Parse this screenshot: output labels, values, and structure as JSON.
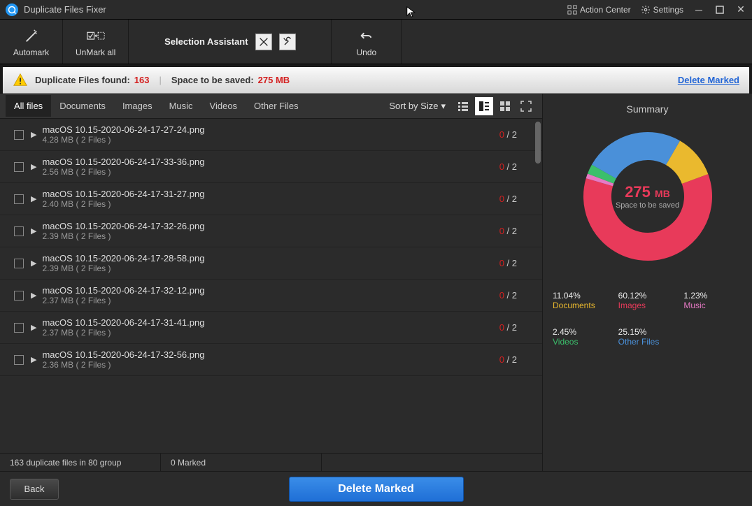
{
  "titlebar": {
    "title": "Duplicate Files Fixer",
    "action_center": "Action Center",
    "settings": "Settings"
  },
  "toolbar": {
    "automark": "Automark",
    "unmark_all": "UnMark all",
    "selection_assistant": "Selection Assistant",
    "undo": "Undo"
  },
  "infobar": {
    "found_label": "Duplicate Files found:",
    "found_count": "163",
    "space_label": "Space to be saved:",
    "space_value": "275 MB",
    "delete_marked": "Delete Marked"
  },
  "tabs": {
    "items": [
      "All files",
      "Documents",
      "Images",
      "Music",
      "Videos",
      "Other Files"
    ],
    "active_index": 0,
    "sort_label": "Sort by Size"
  },
  "files": [
    {
      "name": "macOS 10.15-2020-06-24-17-27-24.png",
      "size": "4.28 MB",
      "group": "( 2 Files )",
      "sel": "0",
      "total": "2"
    },
    {
      "name": "macOS 10.15-2020-06-24-17-33-36.png",
      "size": "2.56 MB",
      "group": "( 2 Files )",
      "sel": "0",
      "total": "2"
    },
    {
      "name": "macOS 10.15-2020-06-24-17-31-27.png",
      "size": "2.40 MB",
      "group": "( 2 Files )",
      "sel": "0",
      "total": "2"
    },
    {
      "name": "macOS 10.15-2020-06-24-17-32-26.png",
      "size": "2.39 MB",
      "group": "( 2 Files )",
      "sel": "0",
      "total": "2"
    },
    {
      "name": "macOS 10.15-2020-06-24-17-28-58.png",
      "size": "2.39 MB",
      "group": "( 2 Files )",
      "sel": "0",
      "total": "2"
    },
    {
      "name": "macOS 10.15-2020-06-24-17-32-12.png",
      "size": "2.37 MB",
      "group": "( 2 Files )",
      "sel": "0",
      "total": "2"
    },
    {
      "name": "macOS 10.15-2020-06-24-17-31-41.png",
      "size": "2.37 MB",
      "group": "( 2 Files )",
      "sel": "0",
      "total": "2"
    },
    {
      "name": "macOS 10.15-2020-06-24-17-32-56.png",
      "size": "2.36 MB",
      "group": "( 2 Files )",
      "sel": "0",
      "total": "2"
    }
  ],
  "statusbar": {
    "summary": "163 duplicate files in 80 group",
    "marked": "0 Marked"
  },
  "bottombar": {
    "back": "Back",
    "delete": "Delete Marked"
  },
  "summary": {
    "title": "Summary",
    "center_value": "275",
    "center_unit": "MB",
    "center_label": "Space to be saved",
    "donut": {
      "segments": [
        {
          "label": "Documents",
          "pct": 11.04,
          "color": "#eab92e"
        },
        {
          "label": "Images",
          "pct": 60.12,
          "color": "#e83a5a"
        },
        {
          "label": "Music",
          "pct": 1.23,
          "color": "#e679c4"
        },
        {
          "label": "Videos",
          "pct": 2.45,
          "color": "#3bbf6b"
        },
        {
          "label": "Other Files",
          "pct": 25.15,
          "color": "#4a90d9"
        }
      ],
      "inner_bg": "#2b2b2b",
      "thickness": 40
    },
    "legend": [
      {
        "pct": "11.04%",
        "label": "Documents",
        "color": "#eab92e"
      },
      {
        "pct": "60.12%",
        "label": "Images",
        "color": "#e83a5a"
      },
      {
        "pct": "1.23%",
        "label": "Music",
        "color": "#e679c4"
      },
      {
        "pct": "2.45%",
        "label": "Videos",
        "color": "#3bbf6b"
      },
      {
        "pct": "25.15%",
        "label": "Other Files",
        "color": "#4a90d9"
      }
    ]
  }
}
